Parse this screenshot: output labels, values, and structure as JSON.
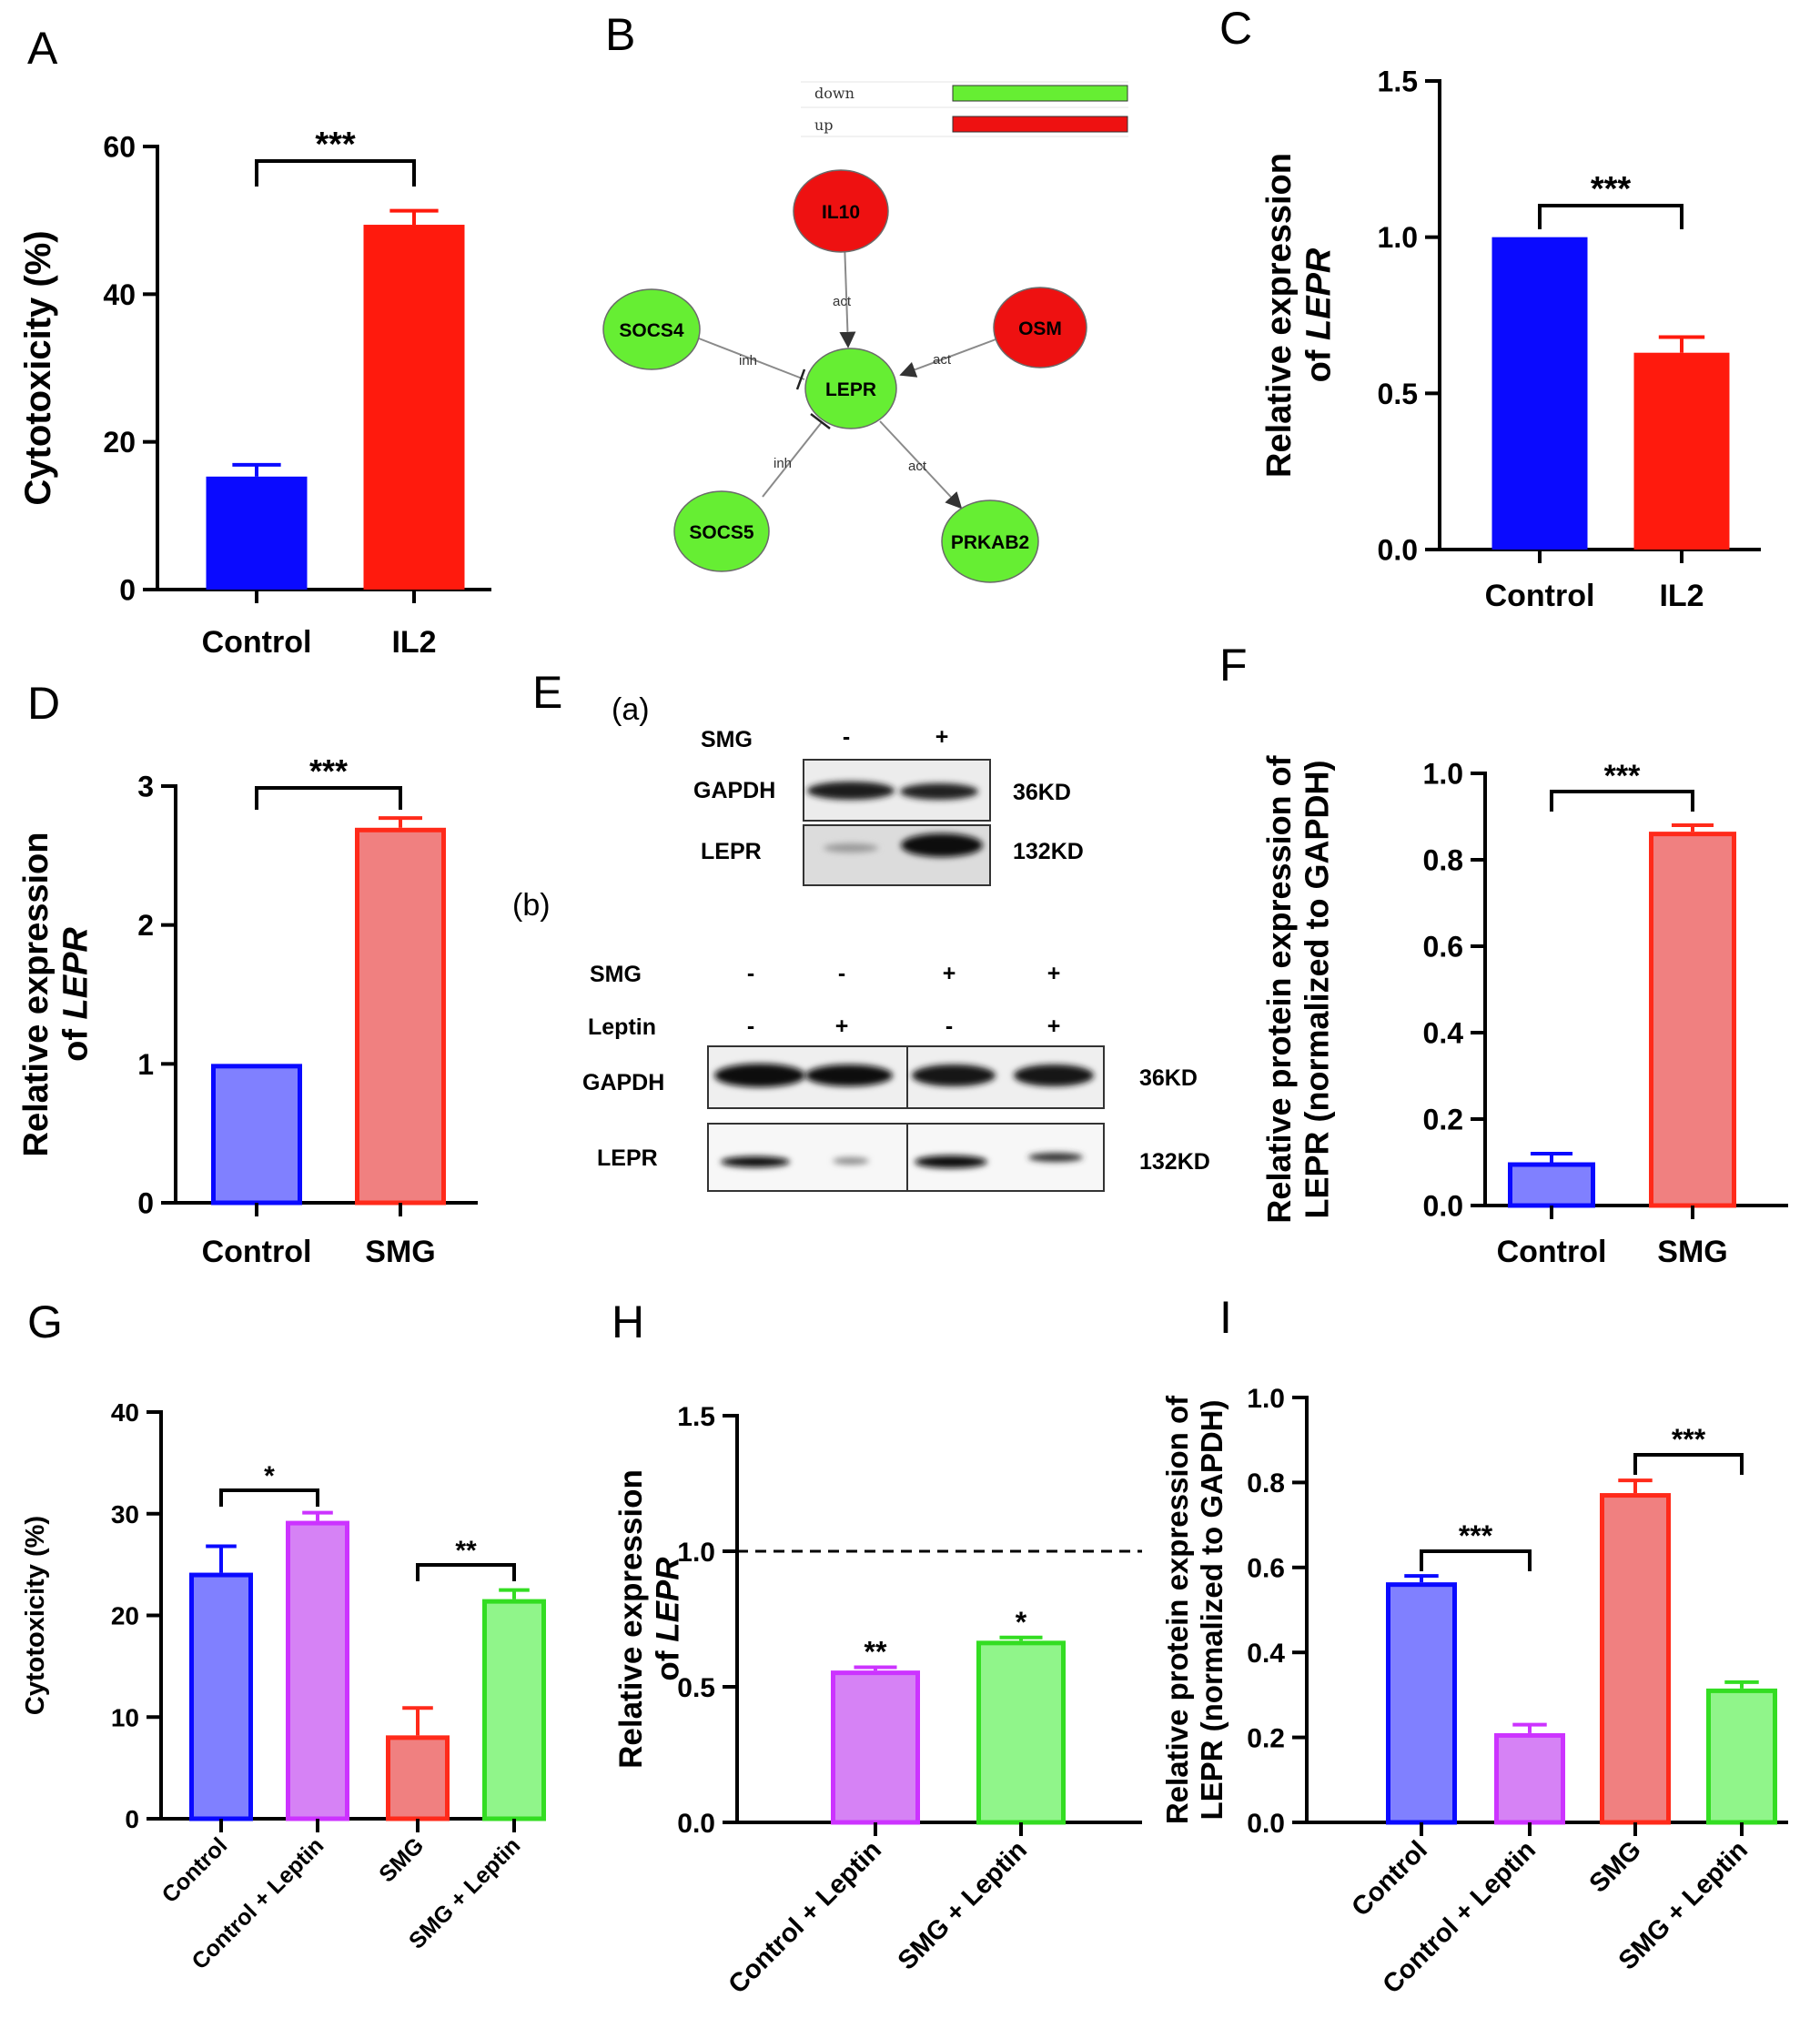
{
  "figure": {
    "panel_letters": [
      "A",
      "B",
      "C",
      "D",
      "E",
      "F",
      "G",
      "H",
      "I"
    ],
    "colors": {
      "control": "#0a0aff",
      "il2": "#ff1a0d",
      "control_light": "#8080ff",
      "smg_light": "#f08080",
      "leptin_purple": "#d682f5",
      "leptin_purple_edge": "#cc33ff",
      "leptin_green": "#90f58a",
      "leptin_green_edge": "#33dd22",
      "smg_edge": "#ff2a1a"
    }
  },
  "chart_data": [
    {
      "panel": "A",
      "type": "bar",
      "categories": [
        "Control",
        "IL2"
      ],
      "values": [
        15.3,
        49.4
      ],
      "errors": [
        1.6,
        1.9
      ],
      "ylabel": "Cytotoxicity (%)",
      "ylim": [
        0,
        60
      ],
      "yticks": [
        "0",
        "20",
        "40",
        "60"
      ],
      "significance": [
        {
          "from": 0,
          "to": 1,
          "label": "***"
        }
      ]
    },
    {
      "panel": "C",
      "type": "bar",
      "categories": [
        "Control",
        "IL2"
      ],
      "values": [
        1.0,
        0.63
      ],
      "errors": [
        0,
        0.05
      ],
      "ylabel": "Relative expression of LEPR",
      "ylim": [
        0,
        1.5
      ],
      "yticks": [
        "0.0",
        "0.5",
        "1.0",
        "1.5"
      ],
      "significance": [
        {
          "from": 0,
          "to": 1,
          "label": "***"
        }
      ]
    },
    {
      "panel": "D",
      "type": "bar",
      "categories": [
        "Control",
        "SMG"
      ],
      "values": [
        1.0,
        2.7
      ],
      "errors": [
        0,
        0.07
      ],
      "ylabel": "Relative expression of LEPR",
      "ylim": [
        0,
        3
      ],
      "yticks": [
        "0",
        "1",
        "2",
        "3"
      ],
      "significance": [
        {
          "from": 0,
          "to": 1,
          "label": "***"
        }
      ]
    },
    {
      "panel": "F",
      "type": "bar",
      "categories": [
        "Control",
        "SMG"
      ],
      "values": [
        0.1,
        0.865
      ],
      "errors": [
        0.02,
        0.015
      ],
      "ylabel": "Relative protein expression of LEPR (normalized to GAPDH)",
      "ylim": [
        0,
        1.0
      ],
      "yticks": [
        "0.0",
        "0.2",
        "0.4",
        "0.6",
        "0.8",
        "1.0"
      ],
      "significance": [
        {
          "from": 0,
          "to": 1,
          "label": "***"
        }
      ]
    },
    {
      "panel": "G",
      "type": "bar",
      "categories": [
        "Control",
        "Control + Leptin",
        "SMG",
        "SMG + Leptin"
      ],
      "values": [
        24.2,
        29.3,
        8.2,
        21.6
      ],
      "errors": [
        2.6,
        0.8,
        2.7,
        0.9
      ],
      "ylabel": "Cytotoxicity (%)",
      "ylim": [
        0,
        40
      ],
      "yticks": [
        "0",
        "10",
        "20",
        "30",
        "40"
      ],
      "significance": [
        {
          "from": 0,
          "to": 1,
          "label": "*"
        },
        {
          "from": 2,
          "to": 3,
          "label": "**"
        }
      ]
    },
    {
      "panel": "H",
      "type": "bar",
      "categories": [
        "Control + Leptin",
        "SMG + Leptin"
      ],
      "values": [
        0.56,
        0.67
      ],
      "errors": [
        0.012,
        0.012
      ],
      "ylabel": "Relative expression of LEPR",
      "ylim": [
        0,
        1.5
      ],
      "yticks": [
        "0.0",
        "0.5",
        "1.0",
        "1.5"
      ],
      "reference_line": 1.0,
      "bar_marks": [
        "**",
        "*"
      ]
    },
    {
      "panel": "I",
      "type": "bar",
      "categories": [
        "Control",
        "Control + Leptin",
        "SMG",
        "SMG + Leptin"
      ],
      "values": [
        0.565,
        0.21,
        0.775,
        0.315
      ],
      "errors": [
        0.015,
        0.02,
        0.03,
        0.015
      ],
      "ylabel": "Relative protein expression of LEPR (normalized to GAPDH)",
      "ylim": [
        0,
        1.0
      ],
      "yticks": [
        "0.0",
        "0.2",
        "0.4",
        "0.6",
        "0.8",
        "1.0"
      ],
      "significance": [
        {
          "from": 0,
          "to": 1,
          "label": "***"
        },
        {
          "from": 2,
          "to": 3,
          "label": "***"
        }
      ]
    }
  ],
  "network": {
    "legend": [
      {
        "label": "down",
        "color": "#66ee33"
      },
      {
        "label": "up",
        "color": "#ee1111"
      }
    ],
    "nodes": [
      {
        "id": "IL10",
        "label": "IL10",
        "regulation": "up"
      },
      {
        "id": "SOCS4",
        "label": "SOCS4",
        "regulation": "down"
      },
      {
        "id": "OSM",
        "label": "OSM",
        "regulation": "up"
      },
      {
        "id": "LEPR",
        "label": "LEPR",
        "regulation": "down"
      },
      {
        "id": "SOCS5",
        "label": "SOCS5",
        "regulation": "down"
      },
      {
        "id": "PRKAB2",
        "label": "PRKAB2",
        "regulation": "down"
      }
    ],
    "edges": [
      {
        "from": "IL10",
        "to": "LEPR",
        "label": "act"
      },
      {
        "from": "SOCS4",
        "to": "LEPR",
        "label": "inh"
      },
      {
        "from": "OSM",
        "to": "LEPR",
        "label": "act"
      },
      {
        "from": "SOCS5",
        "to": "LEPR",
        "label": "inh"
      },
      {
        "from": "LEPR",
        "to": "PRKAB2",
        "label": "act"
      }
    ]
  },
  "western": {
    "a_label": "(a)",
    "b_label": "(b)",
    "a": {
      "condition_label": "SMG",
      "signs": [
        "-",
        "+"
      ],
      "rows": [
        {
          "name": "GAPDH",
          "size": "36KD"
        },
        {
          "name": "LEPR",
          "size": "132KD"
        }
      ]
    },
    "b": {
      "conditions": [
        {
          "label": "SMG",
          "signs": [
            "-",
            "-",
            "+",
            "+"
          ]
        },
        {
          "label": "Leptin",
          "signs": [
            "-",
            "+",
            "-",
            "+"
          ]
        }
      ],
      "rows": [
        {
          "name": "GAPDH",
          "size": "36KD"
        },
        {
          "name": "LEPR",
          "size": "132KD"
        }
      ]
    }
  }
}
